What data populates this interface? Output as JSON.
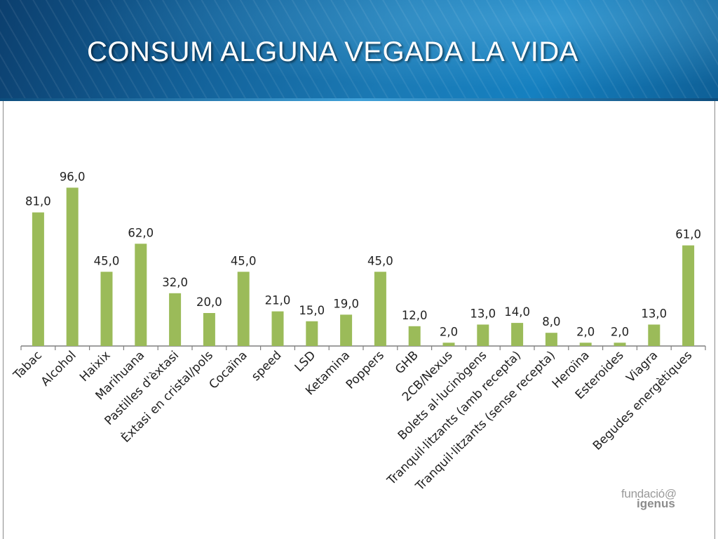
{
  "slide": {
    "title": "CONSUM ALGUNA VEGADA LA VIDA"
  },
  "logo": {
    "line1": "fundació@",
    "line2": "igenus"
  },
  "colors": {
    "bar": "#9bbb59",
    "banner": "#13629a",
    "axis": "#7f7f7f"
  },
  "chart_data": {
    "type": "bar",
    "categories": [
      "Tabac",
      "Alcohol",
      "Haixix",
      "Marihuana",
      "Pastilles d'èxtasi",
      "Èxtasi en cristal/pols",
      "Cocaïna",
      "speed",
      "LSD",
      "Ketamina",
      "Poppers",
      "GHB",
      "2CB/Nexus",
      "Bolets al·lucinògens",
      "Tranquil·litzants (amb recepta)",
      "Tranquil·litzants (sense recepta)",
      "Heroïna",
      "Esteroides",
      "Viagra",
      "Begudes energètiques"
    ],
    "values": [
      81,
      96,
      45,
      62,
      32,
      20,
      45,
      21,
      15,
      19,
      45,
      12,
      2,
      13,
      14,
      8,
      2,
      2,
      13,
      61
    ],
    "value_labels": [
      "81,0",
      "96,0",
      "45,0",
      "62,0",
      "32,0",
      "20,0",
      "45,0",
      "21,0",
      "15,0",
      "19,0",
      "45,0",
      "12,0",
      "2,0",
      "13,0",
      "14,0",
      "8,0",
      "2,0",
      "2,0",
      "13,0",
      "61,0"
    ],
    "ylim": [
      0,
      100
    ],
    "grid": false,
    "legend": "none"
  }
}
